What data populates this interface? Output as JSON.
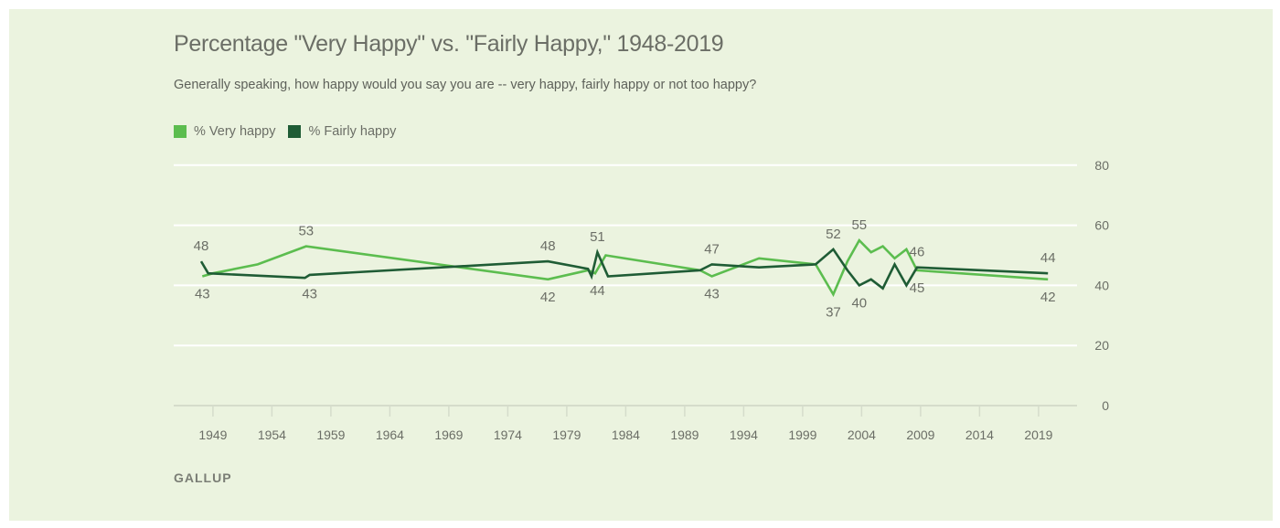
{
  "header": {
    "title": "Percentage \"Very Happy\" vs. \"Fairly Happy,\" 1948-2019",
    "subtitle": "Generally speaking, how happy would you say you are -- very happy, fairly happy or not too happy?"
  },
  "legend": {
    "items": [
      {
        "label": "% Very happy",
        "color": "#5cbd4f"
      },
      {
        "label": "% Fairly happy",
        "color": "#1f5c35"
      }
    ]
  },
  "source": "GALLUP",
  "colors": {
    "background": "#ebf3df",
    "text": "#6b6e66",
    "gridline": "#ffffff",
    "axis": "#d5dccb"
  },
  "chart_data": {
    "type": "line",
    "title": "Percentage \"Very Happy\" vs. \"Fairly Happy,\" 1948-2019",
    "subtitle": "Generally speaking, how happy would you say you are -- very happy, fairly happy or not too happy?",
    "xlabel": "",
    "ylabel": "",
    "xlim": [
      1948,
      2019
    ],
    "ylim": [
      0,
      80
    ],
    "x_ticks": [
      1949,
      1954,
      1959,
      1964,
      1969,
      1974,
      1979,
      1984,
      1989,
      1994,
      1999,
      2004,
      2009,
      2014,
      2019
    ],
    "y_ticks": [
      0,
      20,
      40,
      60,
      80
    ],
    "y_axis_side": "right",
    "grid": true,
    "legend_position": "top-left",
    "series": [
      {
        "name": "% Very happy",
        "color": "#5cbd4f",
        "points": [
          [
            1948.1,
            43
          ],
          [
            1949,
            44
          ],
          [
            1952.8,
            47
          ],
          [
            1956.9,
            53
          ],
          [
            1977.4,
            42
          ],
          [
            1980.8,
            45
          ],
          [
            1981.4,
            44
          ],
          [
            1982.3,
            50
          ],
          [
            1990.3,
            45
          ],
          [
            1991.3,
            43
          ],
          [
            1995.3,
            49
          ],
          [
            2000.1,
            47
          ],
          [
            2001.6,
            37
          ],
          [
            2002.8,
            48
          ],
          [
            2003.8,
            55
          ],
          [
            2004.8,
            51
          ],
          [
            2005.8,
            53
          ],
          [
            2006.8,
            49
          ],
          [
            2007.8,
            52
          ],
          [
            2008.7,
            45
          ],
          [
            2019.8,
            42
          ]
        ],
        "labels": [
          {
            "x": 1948.1,
            "y": 43,
            "text": "43",
            "pos": "below"
          },
          {
            "x": 1956.9,
            "y": 53,
            "text": "53",
            "pos": "above"
          },
          {
            "x": 1977.4,
            "y": 42,
            "text": "42",
            "pos": "below"
          },
          {
            "x": 1991.3,
            "y": 43,
            "text": "43",
            "pos": "below"
          },
          {
            "x": 2001.6,
            "y": 37,
            "text": "37",
            "pos": "below"
          },
          {
            "x": 2003.8,
            "y": 55,
            "text": "55",
            "pos": "above"
          },
          {
            "x": 2008.7,
            "y": 45,
            "text": "45",
            "pos": "below"
          },
          {
            "x": 2019.8,
            "y": 42,
            "text": "42",
            "pos": "below"
          }
        ]
      },
      {
        "name": "% Fairly happy",
        "color": "#1f5c35",
        "points": [
          [
            1948,
            48
          ],
          [
            1948.6,
            44
          ],
          [
            1956.8,
            42.5
          ],
          [
            1957.2,
            43.5
          ],
          [
            1977.4,
            48
          ],
          [
            1980.8,
            45.5
          ],
          [
            1981.1,
            43
          ],
          [
            1981.6,
            51
          ],
          [
            1982.5,
            43
          ],
          [
            1990.3,
            45
          ],
          [
            1991.3,
            47
          ],
          [
            1995.3,
            46
          ],
          [
            2000.1,
            47
          ],
          [
            2001.6,
            52
          ],
          [
            2002.8,
            45
          ],
          [
            2003.8,
            40
          ],
          [
            2004.8,
            42
          ],
          [
            2005.8,
            39
          ],
          [
            2006.8,
            47
          ],
          [
            2007.8,
            40
          ],
          [
            2008.7,
            46
          ],
          [
            2019.8,
            44
          ]
        ],
        "labels": [
          {
            "x": 1948,
            "y": 48,
            "text": "48",
            "pos": "above"
          },
          {
            "x": 1957.2,
            "y": 43,
            "text": "43",
            "pos": "below"
          },
          {
            "x": 1977.4,
            "y": 48,
            "text": "48",
            "pos": "above"
          },
          {
            "x": 1981.6,
            "y": 51,
            "text": "51",
            "pos": "above"
          },
          {
            "x": 1981.6,
            "y": 44,
            "text": "44",
            "pos": "below"
          },
          {
            "x": 1991.3,
            "y": 47,
            "text": "47",
            "pos": "above"
          },
          {
            "x": 2001.6,
            "y": 52,
            "text": "52",
            "pos": "above"
          },
          {
            "x": 2003.8,
            "y": 40,
            "text": "40",
            "pos": "below"
          },
          {
            "x": 2008.7,
            "y": 46,
            "text": "46",
            "pos": "above"
          },
          {
            "x": 2019.8,
            "y": 44,
            "text": "44",
            "pos": "above"
          }
        ]
      }
    ]
  }
}
